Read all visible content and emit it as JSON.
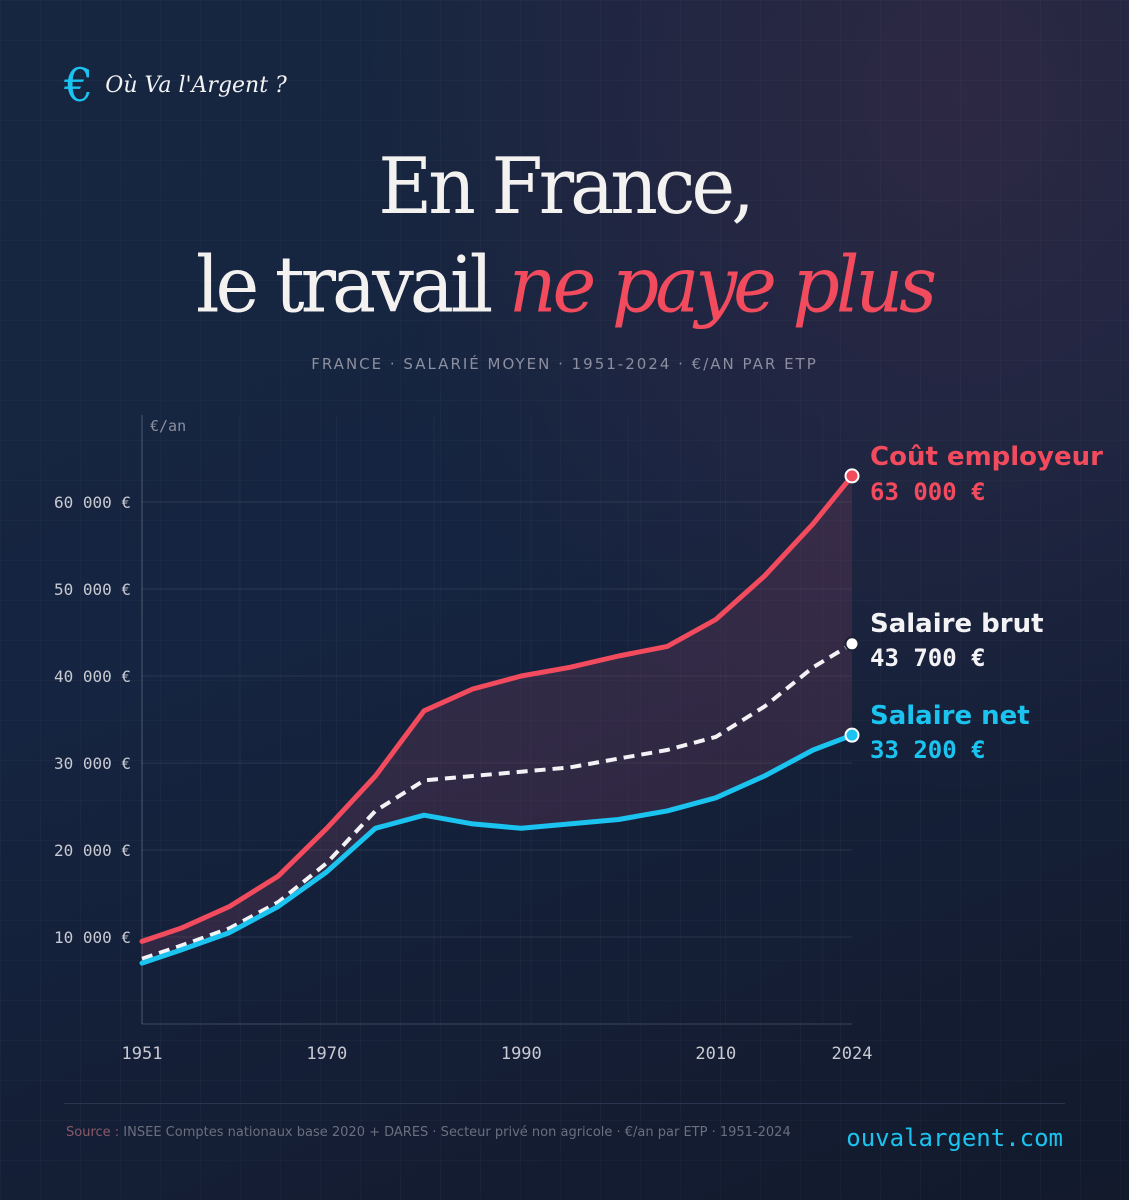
{
  "brand": {
    "icon": "euro-icon",
    "symbol": "€",
    "name": "Où Va l'Argent ?"
  },
  "title": {
    "line1": "En France,",
    "line2_plain": "le travail ",
    "line2_accent": "ne paye plus"
  },
  "subtitle": "FRANCE · SALARIÉ MOYEN · 1951-2024 · €/AN PAR ETP",
  "colors": {
    "accent_red": "#f24b5e",
    "accent_cyan": "#1bc3f0",
    "white": "#f3f3f5",
    "band_fill": "#6e3a5a"
  },
  "chart_data": {
    "type": "line",
    "ylabel": "€/an",
    "ylim": [
      0,
      70000
    ],
    "y_ticks": [
      10000,
      20000,
      30000,
      40000,
      50000,
      60000
    ],
    "y_tick_labels": [
      "10 000 €",
      "20 000 €",
      "30 000 €",
      "40 000 €",
      "50 000 €",
      "60 000 €"
    ],
    "xlim": [
      1951,
      2024
    ],
    "x_ticks": [
      1951,
      1970,
      1990,
      2010,
      2024
    ],
    "x_tick_labels": [
      "1951",
      "1970",
      "1990",
      "2010",
      "2024"
    ],
    "grid": true,
    "shaded_area_between": [
      "Coût employeur",
      "Salaire net"
    ],
    "series": [
      {
        "name": "Coût employeur",
        "end_label": "63 000 €",
        "color": "#f24b5e",
        "style": "solid",
        "points": [
          [
            1951,
            9500
          ],
          [
            1955,
            11000
          ],
          [
            1960,
            13500
          ],
          [
            1965,
            17000
          ],
          [
            1970,
            22500
          ],
          [
            1975,
            28500
          ],
          [
            1980,
            36000
          ],
          [
            1985,
            38500
          ],
          [
            1990,
            40000
          ],
          [
            1995,
            41000
          ],
          [
            2000,
            42300
          ],
          [
            2005,
            43400
          ],
          [
            2010,
            46500
          ],
          [
            2015,
            51500
          ],
          [
            2020,
            57500
          ],
          [
            2024,
            63000
          ]
        ]
      },
      {
        "name": "Salaire brut",
        "end_label": "43 700 €",
        "color": "#f3f3f5",
        "style": "dashed",
        "points": [
          [
            1951,
            7500
          ],
          [
            1955,
            9000
          ],
          [
            1960,
            11000
          ],
          [
            1965,
            14000
          ],
          [
            1970,
            18500
          ],
          [
            1975,
            24500
          ],
          [
            1980,
            28000
          ],
          [
            1985,
            28500
          ],
          [
            1990,
            29000
          ],
          [
            1995,
            29500
          ],
          [
            2000,
            30500
          ],
          [
            2005,
            31500
          ],
          [
            2010,
            33000
          ],
          [
            2015,
            36500
          ],
          [
            2020,
            41000
          ],
          [
            2024,
            43700
          ]
        ]
      },
      {
        "name": "Salaire net",
        "end_label": "33 200 €",
        "color": "#1bc3f0",
        "style": "solid",
        "points": [
          [
            1951,
            7000
          ],
          [
            1955,
            8500
          ],
          [
            1960,
            10500
          ],
          [
            1965,
            13500
          ],
          [
            1970,
            17500
          ],
          [
            1975,
            22500
          ],
          [
            1980,
            24000
          ],
          [
            1985,
            23000
          ],
          [
            1990,
            22500
          ],
          [
            1995,
            23000
          ],
          [
            2000,
            23500
          ],
          [
            2005,
            24500
          ],
          [
            2010,
            26000
          ],
          [
            2015,
            28500
          ],
          [
            2020,
            31500
          ],
          [
            2024,
            33200
          ]
        ]
      }
    ]
  },
  "footer": {
    "source_label": "Source : ",
    "source_text": "INSEE Comptes nationaux base 2020 + DARES · Secteur privé non agricole · €/an par ETP · 1951-2024",
    "site": "ouvalargent.com"
  }
}
